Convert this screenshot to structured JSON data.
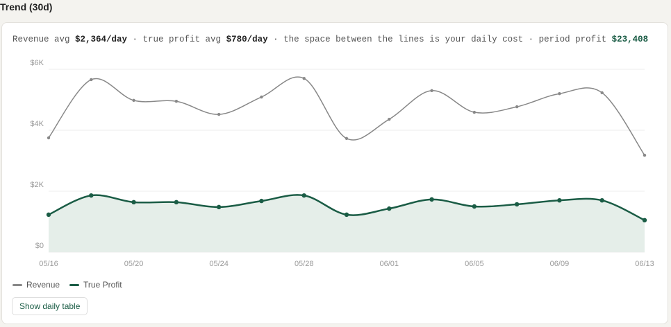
{
  "header": {
    "title": "Trend (30d)"
  },
  "summary": {
    "revenue_label": "Revenue avg ",
    "revenue_avg": "$2,364/day",
    "profit_label": " · true profit avg ",
    "profit_avg": "$780/day",
    "cost_note": " · the space between the lines is your daily cost · period profit ",
    "period_profit": "$23,408"
  },
  "chart_data": {
    "type": "line",
    "categories": [
      "05/16",
      null,
      "05/20",
      null,
      "05/24",
      null,
      "05/28",
      null,
      "06/01",
      null,
      "06/05",
      null,
      "06/09",
      null,
      "06/13"
    ],
    "series": [
      {
        "name": "Revenue",
        "color": "#888888",
        "values": [
          3750,
          5660,
          4980,
          4950,
          4520,
          5090,
          5700,
          3730,
          4360,
          5300,
          4590,
          4770,
          5200,
          5230,
          3180
        ]
      },
      {
        "name": "True Profit",
        "color": "#1a5c45",
        "fill": "#e5eee9",
        "values": [
          1230,
          1860,
          1640,
          1640,
          1480,
          1680,
          1860,
          1230,
          1430,
          1730,
          1500,
          1570,
          1700,
          1700,
          1050
        ]
      }
    ],
    "ylim": [
      0,
      6000
    ],
    "yticks": [
      {
        "value": 0,
        "label": "$0"
      },
      {
        "value": 2000,
        "label": "$2K"
      },
      {
        "value": 4000,
        "label": "$4K"
      },
      {
        "value": 6000,
        "label": "$6K"
      }
    ],
    "grid": true
  },
  "actions": {
    "show_table": "Show daily table"
  }
}
